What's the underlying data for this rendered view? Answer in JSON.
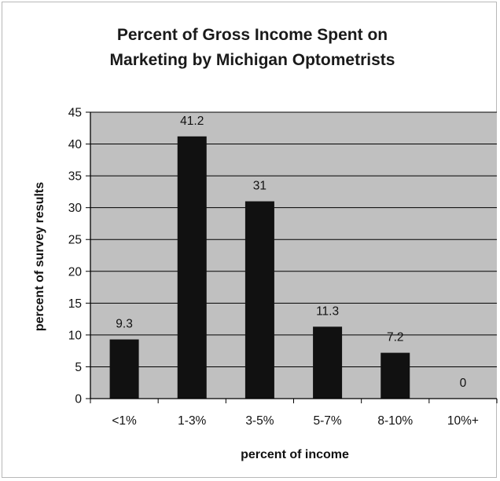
{
  "chart_data": {
    "type": "bar",
    "title_lines": [
      "Percent of Gross Income Spent on",
      "Marketing by Michigan Optometrists"
    ],
    "xlabel": "percent of income",
    "ylabel": "percent of survey results",
    "categories": [
      "<1%",
      "1-3%",
      "3-5%",
      "5-7%",
      "8-10%",
      "10%+"
    ],
    "values": [
      9.3,
      41.2,
      31,
      11.3,
      7.2,
      0
    ],
    "data_labels": [
      "9.3",
      "41.2",
      "31",
      "11.3",
      "7.2",
      "0"
    ],
    "ylim": [
      0,
      45
    ],
    "yticks": [
      0,
      5,
      10,
      15,
      20,
      25,
      30,
      35,
      40,
      45
    ],
    "grid": true,
    "colors": {
      "bar": "#111111",
      "plot_bg": "#c0c0c0",
      "grid": "#000000"
    }
  }
}
